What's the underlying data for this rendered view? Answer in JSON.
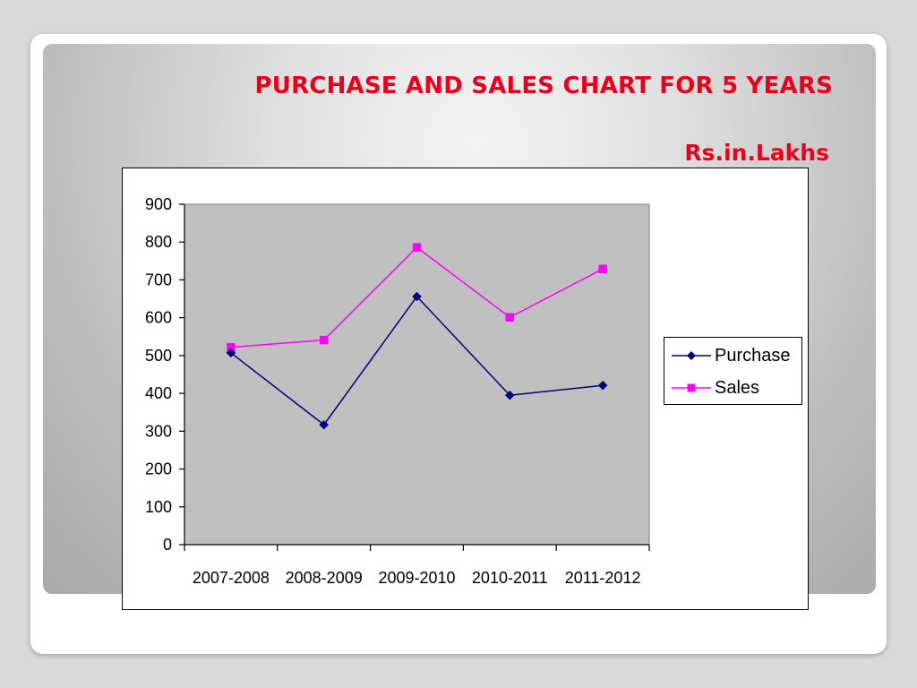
{
  "slide": {
    "title": "PURCHASE AND SALES CHART FOR 5 YEARS",
    "unit_label": "Rs.in.Lakhs"
  },
  "colors": {
    "title": "#e8001c",
    "purchase": "#000080",
    "sales": "#ff00ff",
    "plot_area": "#c0c0c0"
  },
  "chart_data": {
    "type": "line",
    "categories": [
      "2007-2008",
      "2008-2009",
      "2009-2010",
      "2010-2011",
      "2011-2012"
    ],
    "series": [
      {
        "name": "Purchase",
        "values": [
          507,
          317,
          656,
          395,
          421
        ],
        "marker": "diamond",
        "color": "#000080"
      },
      {
        "name": "Sales",
        "values": [
          522,
          541,
          786,
          601,
          729
        ],
        "marker": "square",
        "color": "#ff00ff"
      }
    ],
    "ylim": [
      0,
      900
    ],
    "yticks": [
      0,
      100,
      200,
      300,
      400,
      500,
      600,
      700,
      800,
      900
    ],
    "grid": false,
    "legend_position": "right"
  }
}
